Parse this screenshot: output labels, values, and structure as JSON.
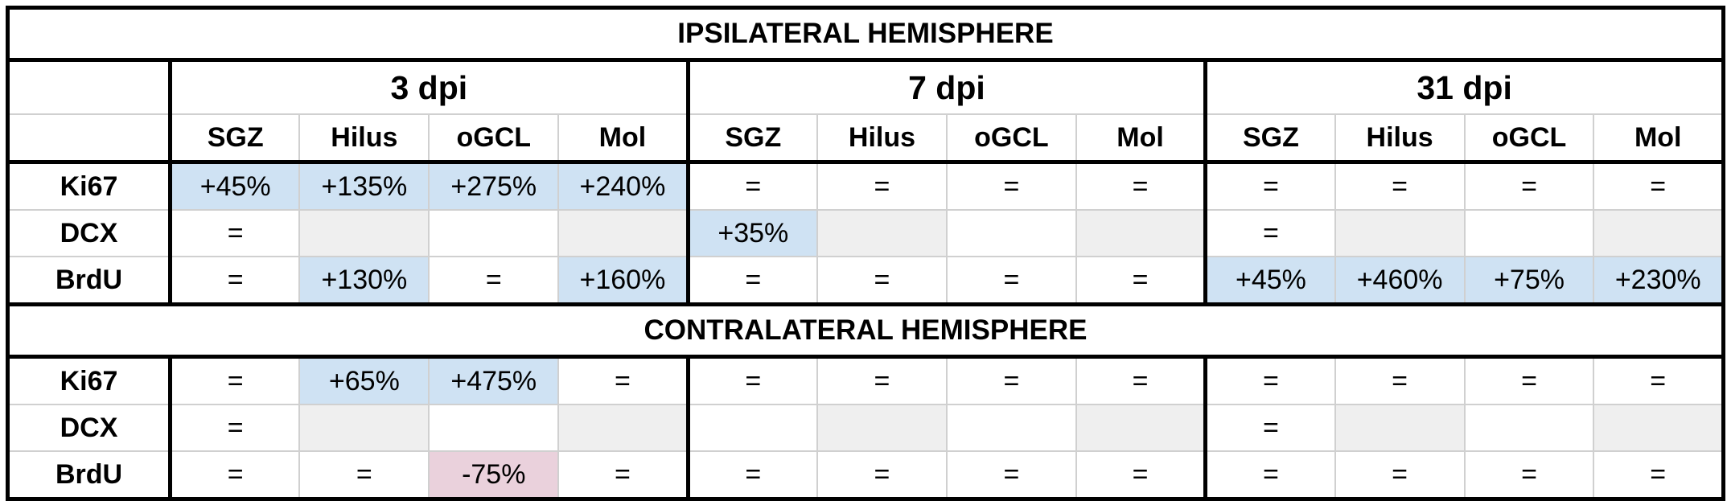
{
  "timepoints": [
    "3 dpi",
    "7 dpi",
    "31 dpi"
  ],
  "regions": [
    "SGZ",
    "Hilus",
    "oGCL",
    "Mol"
  ],
  "fill_colors": {
    "up": "#cfe2f3",
    "down": "#ead1dc",
    "blank": "#efefef"
  },
  "sections": [
    {
      "title": "IPSILATERAL HEMISPHERE",
      "rows": [
        {
          "label": "Ki67",
          "values": [
            "+45%",
            "+135%",
            "+275%",
            "+240%",
            "=",
            "=",
            "=",
            "=",
            "=",
            "=",
            "=",
            "="
          ],
          "fills": [
            "up",
            "up",
            "up",
            "up",
            null,
            null,
            null,
            null,
            null,
            null,
            null,
            null
          ]
        },
        {
          "label": "DCX",
          "values": [
            "=",
            null,
            null,
            null,
            "+35%",
            null,
            null,
            null,
            "=",
            null,
            null,
            null
          ],
          "fills": [
            null,
            "blank",
            null,
            "blank",
            "up",
            "blank",
            null,
            "blank",
            null,
            "blank",
            null,
            "blank"
          ]
        },
        {
          "label": "BrdU",
          "values": [
            "=",
            "+130%",
            "=",
            "+160%",
            "=",
            "=",
            "=",
            "=",
            "+45%",
            "+460%",
            "+75%",
            "+230%"
          ],
          "fills": [
            null,
            "up",
            null,
            "up",
            null,
            null,
            null,
            null,
            "up",
            "up",
            "up",
            "up"
          ]
        }
      ]
    },
    {
      "title": "CONTRALATERAL HEMISPHERE",
      "rows": [
        {
          "label": "Ki67",
          "values": [
            "=",
            "+65%",
            "+475%",
            "=",
            "=",
            "=",
            "=",
            "=",
            "=",
            "=",
            "=",
            "="
          ],
          "fills": [
            null,
            "up",
            "up",
            null,
            null,
            null,
            null,
            null,
            null,
            null,
            null,
            null
          ]
        },
        {
          "label": "DCX",
          "values": [
            "=",
            null,
            null,
            null,
            null,
            null,
            null,
            null,
            "=",
            null,
            null,
            null
          ],
          "fills": [
            null,
            "blank",
            null,
            "blank",
            null,
            "blank",
            null,
            "blank",
            null,
            "blank",
            null,
            "blank"
          ]
        },
        {
          "label": "BrdU",
          "values": [
            "=",
            "=",
            "-75%",
            "=",
            "=",
            "=",
            "=",
            "=",
            "=",
            "=",
            "=",
            "="
          ],
          "fills": [
            null,
            null,
            "down",
            null,
            null,
            null,
            null,
            null,
            null,
            null,
            null,
            null
          ]
        }
      ]
    }
  ]
}
